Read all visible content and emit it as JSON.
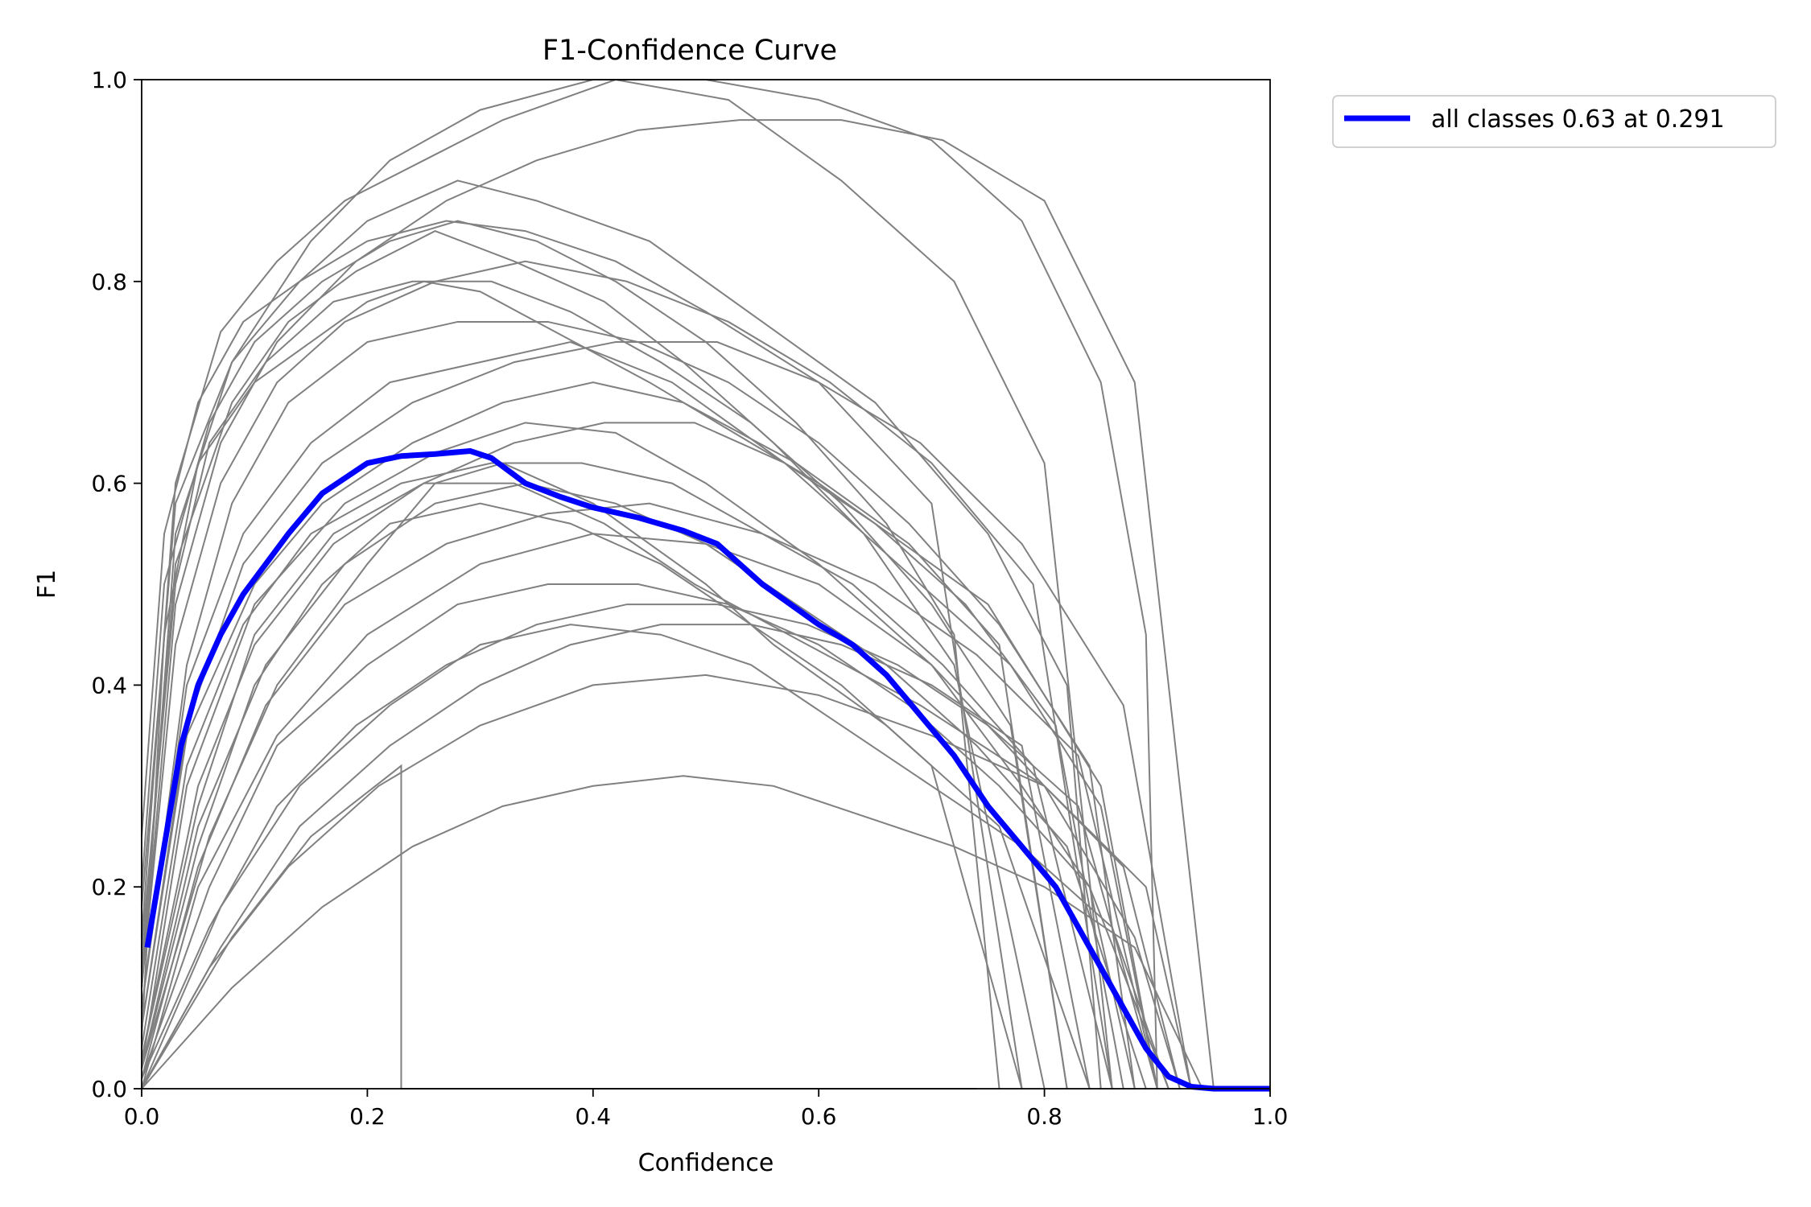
{
  "chart_data": {
    "type": "line",
    "title": "F1-Confidence Curve",
    "xlabel": "Confidence",
    "ylabel": "F1",
    "xlim": [
      0.0,
      1.0
    ],
    "ylim": [
      0.0,
      1.0
    ],
    "xticks": [
      "0.0",
      "0.2",
      "0.4",
      "0.6",
      "0.8",
      "1.0"
    ],
    "yticks": [
      "0.0",
      "0.2",
      "0.4",
      "0.6",
      "0.8",
      "1.0"
    ],
    "grid": false,
    "legend_position": "outside-top-right",
    "background_series_color": "#808080",
    "background_series_note": "many per-class curves (approximate)",
    "series": [
      {
        "name": "all classes 0.63 at 0.291",
        "color": "#0000ff",
        "x": [
          0.005,
          0.02,
          0.035,
          0.05,
          0.07,
          0.09,
          0.11,
          0.13,
          0.16,
          0.2,
          0.23,
          0.26,
          0.291,
          0.31,
          0.34,
          0.37,
          0.4,
          0.44,
          0.48,
          0.51,
          0.55,
          0.6,
          0.63,
          0.66,
          0.69,
          0.72,
          0.75,
          0.78,
          0.81,
          0.84,
          0.87,
          0.89,
          0.91,
          0.93,
          0.95,
          0.97,
          1.0
        ],
        "y": [
          0.14,
          0.24,
          0.34,
          0.4,
          0.45,
          0.49,
          0.52,
          0.55,
          0.59,
          0.62,
          0.627,
          0.629,
          0.632,
          0.625,
          0.6,
          0.587,
          0.576,
          0.566,
          0.553,
          0.54,
          0.5,
          0.46,
          0.44,
          0.41,
          0.37,
          0.33,
          0.28,
          0.24,
          0.2,
          0.14,
          0.08,
          0.04,
          0.012,
          0.002,
          0.0,
          0.0,
          0.0
        ]
      }
    ],
    "background_series": [
      {
        "x": [
          0.0,
          0.02,
          0.05,
          0.1,
          0.15,
          0.2,
          0.25,
          0.3,
          0.35,
          0.45,
          0.6,
          0.75,
          0.85,
          0.9
        ],
        "y": [
          0.05,
          0.45,
          0.62,
          0.7,
          0.74,
          0.78,
          0.8,
          0.79,
          0.76,
          0.7,
          0.6,
          0.48,
          0.3,
          0.0
        ]
      },
      {
        "x": [
          0.0,
          0.03,
          0.08,
          0.14,
          0.2,
          0.28,
          0.35,
          0.45,
          0.55,
          0.65,
          0.75,
          0.82,
          0.85
        ],
        "y": [
          0.1,
          0.55,
          0.72,
          0.8,
          0.86,
          0.9,
          0.88,
          0.84,
          0.76,
          0.68,
          0.55,
          0.4,
          0.0
        ]
      },
      {
        "x": [
          0.0,
          0.04,
          0.1,
          0.18,
          0.26,
          0.34,
          0.42,
          0.5,
          0.6,
          0.7,
          0.78,
          0.84,
          0.88
        ],
        "y": [
          0.02,
          0.3,
          0.48,
          0.58,
          0.63,
          0.66,
          0.65,
          0.6,
          0.52,
          0.42,
          0.3,
          0.2,
          0.0
        ]
      },
      {
        "x": [
          0.0,
          0.05,
          0.12,
          0.2,
          0.3,
          0.4,
          0.5,
          0.6,
          0.7,
          0.8,
          0.88,
          0.92
        ],
        "y": [
          0.0,
          0.2,
          0.35,
          0.45,
          0.52,
          0.55,
          0.54,
          0.5,
          0.42,
          0.3,
          0.15,
          0.0
        ]
      },
      {
        "x": [
          0.0,
          0.03,
          0.07,
          0.12,
          0.18,
          0.25,
          0.32,
          0.42,
          0.52,
          0.62,
          0.72,
          0.8,
          0.86
        ],
        "y": [
          0.15,
          0.6,
          0.75,
          0.82,
          0.88,
          0.92,
          0.96,
          1.0,
          0.98,
          0.9,
          0.8,
          0.62,
          0.0
        ]
      },
      {
        "x": [
          0.0,
          0.06,
          0.12,
          0.2,
          0.26,
          0.32,
          0.4,
          0.5,
          0.56,
          0.66,
          0.76,
          0.84
        ],
        "y": [
          0.02,
          0.25,
          0.4,
          0.52,
          0.6,
          0.62,
          0.58,
          0.5,
          0.44,
          0.36,
          0.26,
          0.0
        ]
      },
      {
        "x": [
          0.0,
          0.04,
          0.09,
          0.15,
          0.22,
          0.3,
          0.38,
          0.47,
          0.57,
          0.67,
          0.77,
          0.85,
          0.9
        ],
        "y": [
          0.08,
          0.4,
          0.55,
          0.64,
          0.7,
          0.72,
          0.74,
          0.7,
          0.62,
          0.52,
          0.42,
          0.28,
          0.0
        ]
      },
      {
        "x": [
          0.0,
          0.08,
          0.15,
          0.23,
          0.23,
          0.28,
          0.36,
          0.45,
          0.55,
          0.64,
          0.74
        ],
        "y": [
          0.0,
          0.15,
          0.25,
          0.32,
          0.0,
          0.0,
          0.0,
          0.0,
          0.0,
          0.0,
          0.0
        ]
      },
      {
        "x": [
          0.0,
          0.02,
          0.06,
          0.1,
          0.16,
          0.22,
          0.28,
          0.35,
          0.42,
          0.5,
          0.58,
          0.66,
          0.72,
          0.76
        ],
        "y": [
          0.2,
          0.5,
          0.66,
          0.74,
          0.8,
          0.84,
          0.86,
          0.84,
          0.8,
          0.74,
          0.66,
          0.56,
          0.45,
          0.0
        ]
      },
      {
        "x": [
          0.0,
          0.05,
          0.1,
          0.17,
          0.25,
          0.33,
          0.41,
          0.49,
          0.59,
          0.69,
          0.8,
          0.89,
          0.93
        ],
        "y": [
          0.03,
          0.28,
          0.45,
          0.55,
          0.6,
          0.6,
          0.56,
          0.5,
          0.44,
          0.38,
          0.3,
          0.2,
          0.0
        ]
      },
      {
        "x": [
          0.0,
          0.03,
          0.08,
          0.13,
          0.19,
          0.26,
          0.33,
          0.41,
          0.48,
          0.56,
          0.64,
          0.72,
          0.8
        ],
        "y": [
          0.12,
          0.52,
          0.68,
          0.76,
          0.81,
          0.85,
          0.82,
          0.78,
          0.72,
          0.64,
          0.55,
          0.42,
          0.0
        ]
      },
      {
        "x": [
          0.0,
          0.07,
          0.14,
          0.22,
          0.3,
          0.38,
          0.46,
          0.54,
          0.62,
          0.7,
          0.78,
          0.86,
          0.91
        ],
        "y": [
          0.0,
          0.18,
          0.3,
          0.38,
          0.44,
          0.46,
          0.45,
          0.42,
          0.36,
          0.3,
          0.24,
          0.16,
          0.0
        ]
      },
      {
        "x": [
          0.0,
          0.03,
          0.08,
          0.15,
          0.22,
          0.3,
          0.4,
          0.5,
          0.6,
          0.7,
          0.78,
          0.85,
          0.89,
          0.9
        ],
        "y": [
          0.18,
          0.58,
          0.72,
          0.84,
          0.92,
          0.97,
          1.0,
          1.0,
          0.98,
          0.94,
          0.86,
          0.7,
          0.45,
          0.0
        ]
      },
      {
        "x": [
          0.0,
          0.04,
          0.1,
          0.16,
          0.24,
          0.32,
          0.4,
          0.48,
          0.58,
          0.68,
          0.76,
          0.82
        ],
        "y": [
          0.06,
          0.35,
          0.5,
          0.58,
          0.64,
          0.68,
          0.7,
          0.68,
          0.62,
          0.54,
          0.44,
          0.0
        ]
      },
      {
        "x": [
          0.0,
          0.05,
          0.11,
          0.18,
          0.27,
          0.36,
          0.45,
          0.55,
          0.65,
          0.74,
          0.83,
          0.9
        ],
        "y": [
          0.01,
          0.22,
          0.38,
          0.48,
          0.54,
          0.57,
          0.58,
          0.55,
          0.5,
          0.43,
          0.33,
          0.0
        ]
      },
      {
        "x": [
          0.0,
          0.06,
          0.13,
          0.21,
          0.3,
          0.4,
          0.5,
          0.6,
          0.7,
          0.8,
          0.87,
          0.92
        ],
        "y": [
          0.0,
          0.12,
          0.22,
          0.3,
          0.36,
          0.4,
          0.41,
          0.39,
          0.35,
          0.3,
          0.22,
          0.0
        ]
      },
      {
        "x": [
          0.0,
          0.02,
          0.05,
          0.09,
          0.14,
          0.2,
          0.27,
          0.34,
          0.42,
          0.5,
          0.6,
          0.7,
          0.78
        ],
        "y": [
          0.25,
          0.55,
          0.68,
          0.76,
          0.8,
          0.84,
          0.86,
          0.85,
          0.82,
          0.77,
          0.7,
          0.58,
          0.0
        ]
      },
      {
        "x": [
          0.0,
          0.04,
          0.09,
          0.15,
          0.23,
          0.31,
          0.39,
          0.47,
          0.55,
          0.63,
          0.71,
          0.79,
          0.86
        ],
        "y": [
          0.04,
          0.32,
          0.46,
          0.55,
          0.6,
          0.62,
          0.62,
          0.6,
          0.55,
          0.5,
          0.42,
          0.32,
          0.0
        ]
      },
      {
        "x": [
          0.0,
          0.08,
          0.16,
          0.24,
          0.32,
          0.4,
          0.48,
          0.56,
          0.64,
          0.72,
          0.8,
          0.88,
          0.94
        ],
        "y": [
          0.0,
          0.1,
          0.18,
          0.24,
          0.28,
          0.3,
          0.31,
          0.3,
          0.27,
          0.24,
          0.2,
          0.14,
          0.0
        ]
      },
      {
        "x": [
          0.0,
          0.03,
          0.07,
          0.12,
          0.19,
          0.27,
          0.35,
          0.44,
          0.53,
          0.62,
          0.71,
          0.8,
          0.88,
          0.95
        ],
        "y": [
          0.1,
          0.48,
          0.64,
          0.74,
          0.82,
          0.88,
          0.92,
          0.95,
          0.96,
          0.96,
          0.94,
          0.88,
          0.7,
          0.0
        ]
      },
      {
        "x": [
          0.0,
          0.05,
          0.1,
          0.16,
          0.22,
          0.3,
          0.38,
          0.46,
          0.54,
          0.62,
          0.7,
          0.78
        ],
        "y": [
          0.02,
          0.24,
          0.4,
          0.5,
          0.56,
          0.58,
          0.56,
          0.52,
          0.46,
          0.4,
          0.32,
          0.0
        ]
      },
      {
        "x": [
          0.0,
          0.04,
          0.08,
          0.13,
          0.2,
          0.28,
          0.36,
          0.44,
          0.52,
          0.6,
          0.68,
          0.76,
          0.84,
          0.88
        ],
        "y": [
          0.08,
          0.42,
          0.58,
          0.68,
          0.74,
          0.76,
          0.76,
          0.74,
          0.7,
          0.64,
          0.56,
          0.46,
          0.32,
          0.0
        ]
      },
      {
        "x": [
          0.0,
          0.06,
          0.12,
          0.19,
          0.27,
          0.35,
          0.43,
          0.51,
          0.59,
          0.67,
          0.75,
          0.83,
          0.9
        ],
        "y": [
          0.01,
          0.16,
          0.28,
          0.36,
          0.42,
          0.46,
          0.48,
          0.48,
          0.46,
          0.42,
          0.36,
          0.28,
          0.0
        ]
      },
      {
        "x": [
          0.0,
          0.03,
          0.06,
          0.11,
          0.17,
          0.24,
          0.31,
          0.38,
          0.46,
          0.54,
          0.62,
          0.7,
          0.77,
          0.82
        ],
        "y": [
          0.14,
          0.5,
          0.64,
          0.72,
          0.78,
          0.8,
          0.8,
          0.77,
          0.72,
          0.66,
          0.58,
          0.48,
          0.36,
          0.0
        ]
      },
      {
        "x": [
          0.0,
          0.05,
          0.11,
          0.18,
          0.26,
          0.34,
          0.42,
          0.5,
          0.58,
          0.66,
          0.74,
          0.82,
          0.89
        ],
        "y": [
          0.02,
          0.26,
          0.42,
          0.52,
          0.58,
          0.6,
          0.58,
          0.54,
          0.48,
          0.42,
          0.34,
          0.24,
          0.0
        ]
      },
      {
        "x": [
          0.0,
          0.04,
          0.09,
          0.16,
          0.24,
          0.33,
          0.42,
          0.51,
          0.6,
          0.69,
          0.78,
          0.87,
          0.93
        ],
        "y": [
          0.06,
          0.36,
          0.52,
          0.62,
          0.68,
          0.72,
          0.74,
          0.74,
          0.7,
          0.64,
          0.54,
          0.38,
          0.0
        ]
      },
      {
        "x": [
          0.0,
          0.07,
          0.14,
          0.22,
          0.3,
          0.38,
          0.46,
          0.54,
          0.62,
          0.7,
          0.78,
          0.84
        ],
        "y": [
          0.0,
          0.14,
          0.26,
          0.34,
          0.4,
          0.44,
          0.46,
          0.46,
          0.44,
          0.4,
          0.34,
          0.0
        ]
      },
      {
        "x": [
          0.0,
          0.03,
          0.07,
          0.12,
          0.18,
          0.26,
          0.34,
          0.43,
          0.52,
          0.61,
          0.7,
          0.79,
          0.86
        ],
        "y": [
          0.1,
          0.44,
          0.6,
          0.7,
          0.76,
          0.8,
          0.82,
          0.8,
          0.76,
          0.7,
          0.62,
          0.5,
          0.0
        ]
      },
      {
        "x": [
          0.0,
          0.05,
          0.1,
          0.17,
          0.25,
          0.33,
          0.41,
          0.49,
          0.57,
          0.65,
          0.73,
          0.81,
          0.87
        ],
        "y": [
          0.03,
          0.3,
          0.44,
          0.54,
          0.6,
          0.64,
          0.66,
          0.66,
          0.62,
          0.56,
          0.48,
          0.36,
          0.0
        ]
      },
      {
        "x": [
          0.0,
          0.06,
          0.12,
          0.2,
          0.28,
          0.36,
          0.44,
          0.52,
          0.6,
          0.68,
          0.76,
          0.84,
          0.91
        ],
        "y": [
          0.01,
          0.2,
          0.34,
          0.42,
          0.48,
          0.5,
          0.5,
          0.48,
          0.44,
          0.38,
          0.3,
          0.2,
          0.0
        ]
      }
    ]
  }
}
